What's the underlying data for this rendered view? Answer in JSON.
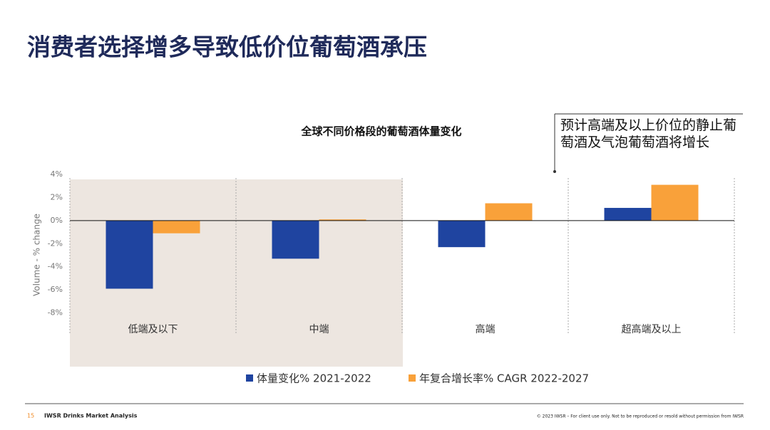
{
  "slide": {
    "title": "消费者选择增多导致低价位葡萄酒承压",
    "annotation": "预计高端及以上价位的静止葡萄酒及气泡葡萄酒将增长",
    "page_number": "15",
    "brand": "IWSR Drinks Market Analysis",
    "copyright": "© 2023 IWSR – For client use only. Not to be reproduced or resold without permission from IWSR"
  },
  "chart_data": {
    "type": "bar",
    "title": "全球不同价格段的葡萄酒体量变化",
    "y_label": "Volume - % change",
    "categories": [
      "低端及以下",
      "中端",
      "高端",
      "超高端及以上"
    ],
    "series": [
      {
        "name": "体量变化% 2021-2022",
        "color": "#1f44a0",
        "values": [
          -5.9,
          -3.3,
          -2.3,
          1.1
        ]
      },
      {
        "name": "年复合增长率% CAGR 2022-2027",
        "color": "#f9a13a",
        "values": [
          -1.1,
          0.1,
          1.5,
          3.1
        ]
      }
    ],
    "ylim": [
      -10,
      4
    ],
    "yticks": [
      {
        "value": -8,
        "label": "-8%"
      },
      {
        "value": -6,
        "label": "-6%"
      },
      {
        "value": -4,
        "label": "-4%"
      },
      {
        "value": -2,
        "label": "-2%"
      },
      {
        "value": 0,
        "label": "0%"
      },
      {
        "value": 2,
        "label": "2%"
      },
      {
        "value": 4,
        "label": "4%"
      }
    ]
  }
}
